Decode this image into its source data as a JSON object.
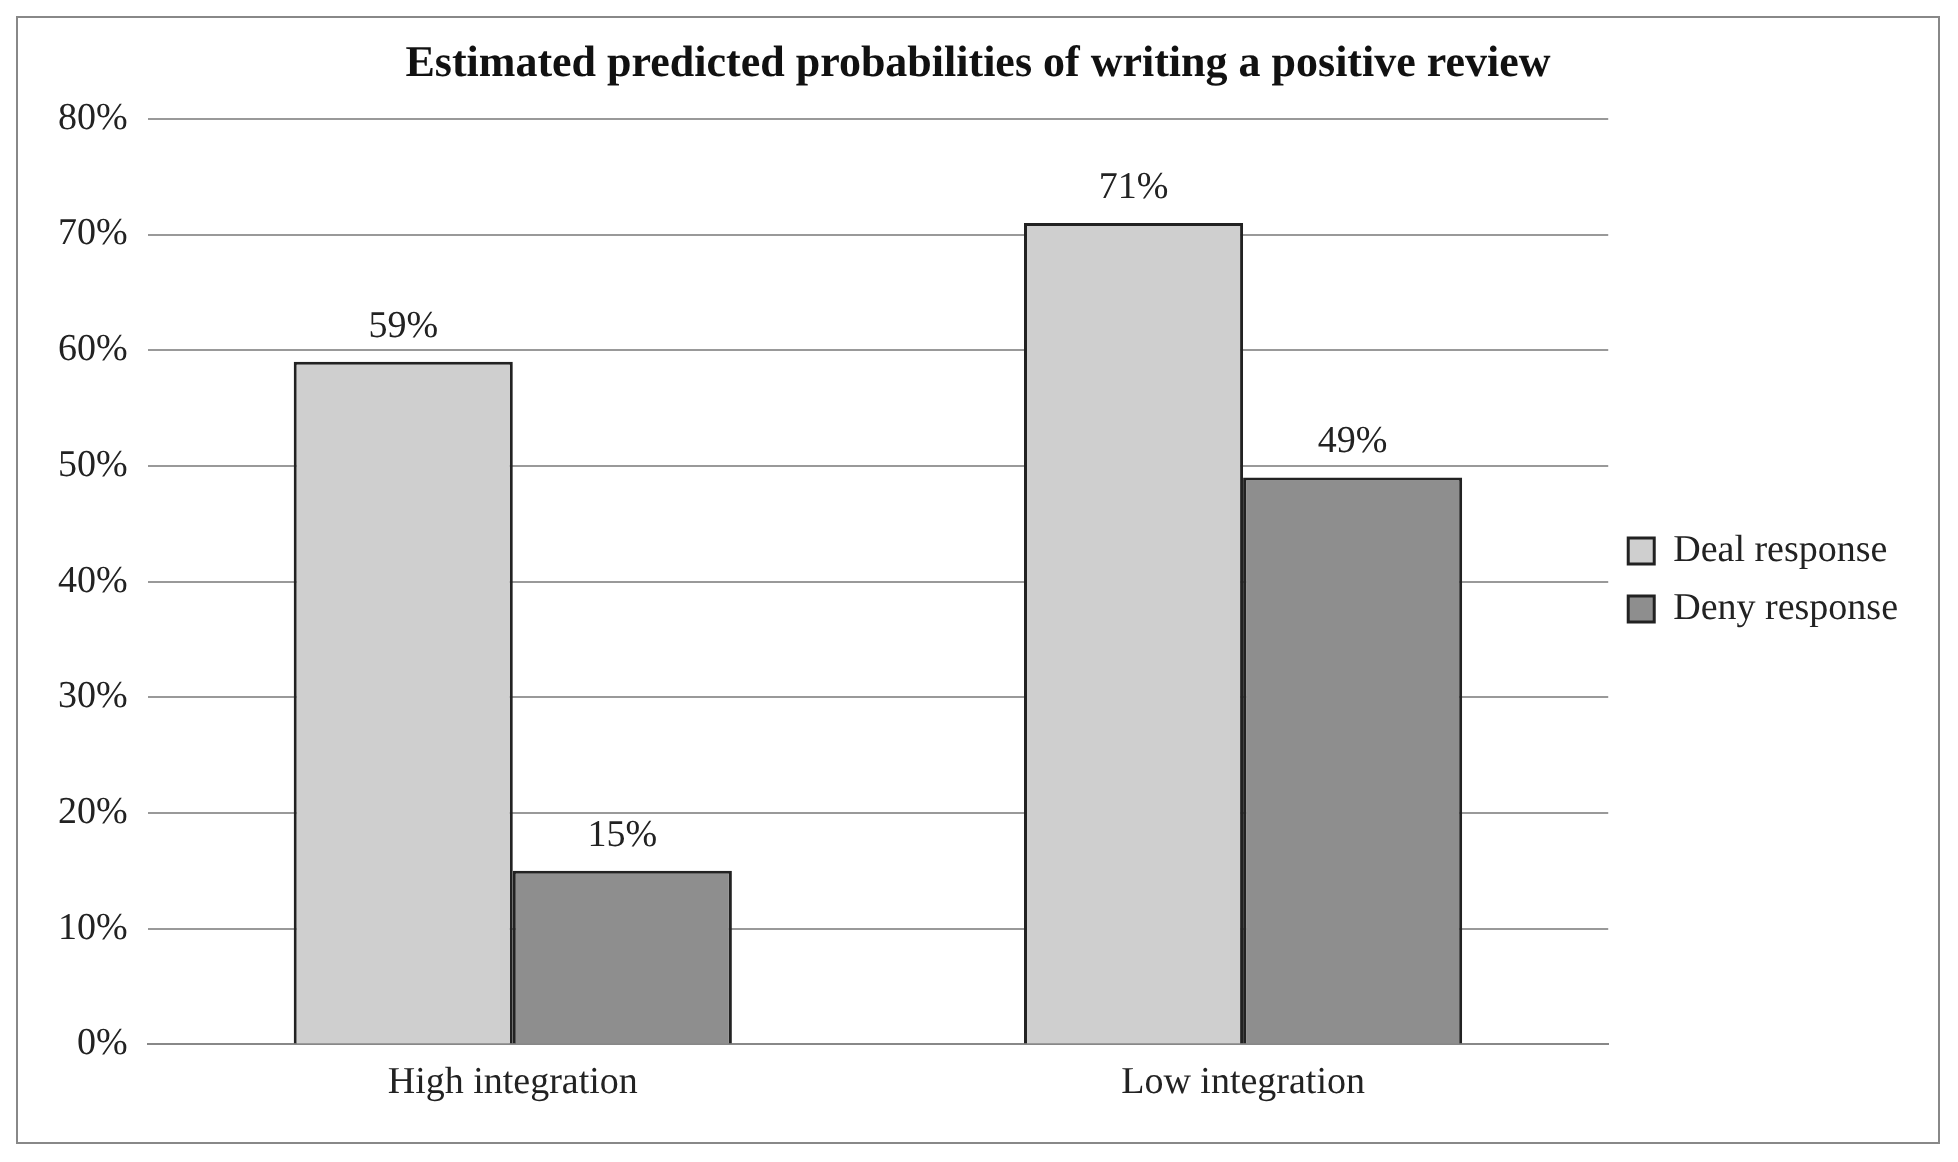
{
  "chart_data": {
    "type": "bar",
    "title": "Estimated predicted probabilities of writing a positive review",
    "categories": [
      "High integration",
      "Low integration"
    ],
    "series": [
      {
        "name": "Deal response",
        "color": "#cfcfcf",
        "values": [
          59,
          71
        ],
        "value_labels": [
          "59%",
          "71%"
        ]
      },
      {
        "name": "Deny response",
        "color": "#8e8e8e",
        "values": [
          15,
          49
        ],
        "value_labels": [
          "15%",
          "49%"
        ]
      }
    ],
    "ylim": [
      0,
      80
    ],
    "yticks": [
      {
        "value": 0,
        "label": "0%"
      },
      {
        "value": 10,
        "label": "10%"
      },
      {
        "value": 20,
        "label": "20%"
      },
      {
        "value": 30,
        "label": "30%"
      },
      {
        "value": 40,
        "label": "40%"
      },
      {
        "value": 50,
        "label": "50%"
      },
      {
        "value": 60,
        "label": "60%"
      },
      {
        "value": 70,
        "label": "70%"
      },
      {
        "value": 80,
        "label": "80%"
      }
    ],
    "grid": "y",
    "legend": "right"
  }
}
